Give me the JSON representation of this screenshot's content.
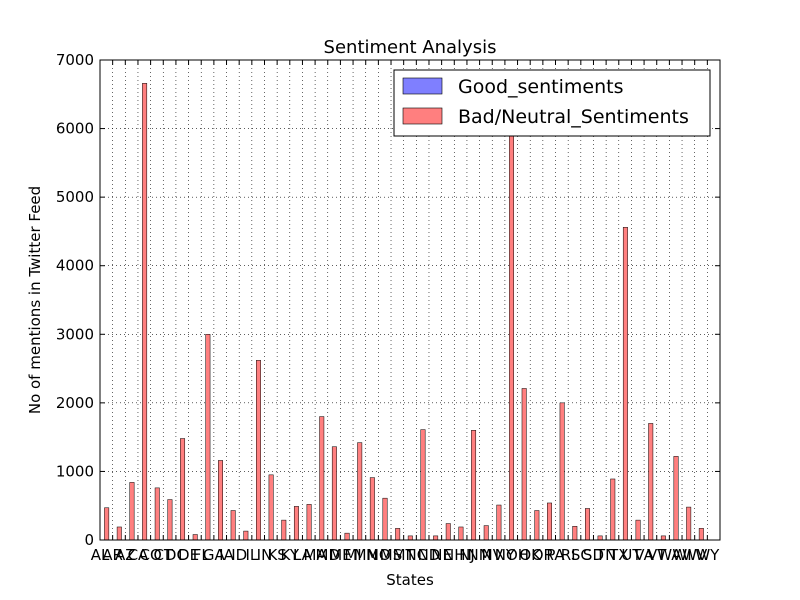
{
  "chart_data": {
    "type": "bar",
    "title": "Sentiment Analysis",
    "xlabel": "States",
    "ylabel": "No of mentions in Twitter Feed",
    "ylim": [
      0,
      7000
    ],
    "yticks": [
      0,
      1000,
      2000,
      3000,
      4000,
      5000,
      6000,
      7000
    ],
    "grid": true,
    "legend_position": "top-right",
    "categories": [
      "AL",
      "AR",
      "AZ",
      "CA",
      "CO",
      "CT",
      "DC",
      "DE",
      "FL",
      "GA",
      "IA",
      "ID",
      "IL",
      "IN",
      "KS",
      "KY",
      "LA",
      "MA",
      "MD",
      "ME",
      "MI",
      "MN",
      "MO",
      "MS",
      "MT",
      "NC",
      "ND",
      "NE",
      "NH",
      "NJ",
      "NM",
      "NV",
      "NY",
      "OH",
      "OK",
      "OR",
      "PA",
      "RI",
      "SC",
      "SD",
      "TN",
      "TX",
      "UT",
      "VA",
      "VT",
      "WA",
      "WI",
      "WV",
      "WY"
    ],
    "series": [
      {
        "name": "Good_sentiments",
        "color": "#7f7fff",
        "values": [
          0,
          0,
          0,
          0,
          0,
          0,
          0,
          0,
          0,
          0,
          0,
          0,
          0,
          0,
          0,
          0,
          0,
          0,
          0,
          0,
          0,
          0,
          0,
          0,
          0,
          0,
          0,
          0,
          0,
          0,
          0,
          0,
          0,
          0,
          0,
          0,
          0,
          0,
          0,
          0,
          0,
          0,
          0,
          0,
          0,
          0,
          0,
          0,
          0
        ]
      },
      {
        "name": "Bad/Neutral_Sentiments",
        "color": "#ff7f7f",
        "values": [
          470,
          190,
          840,
          6660,
          760,
          590,
          1480,
          80,
          3000,
          1160,
          430,
          130,
          2620,
          950,
          290,
          490,
          520,
          1800,
          1360,
          100,
          1420,
          910,
          610,
          170,
          60,
          1610,
          60,
          240,
          190,
          1600,
          210,
          510,
          5900,
          2210,
          430,
          540,
          2000,
          200,
          460,
          60,
          890,
          4560,
          290,
          1700,
          60,
          1220,
          480,
          170,
          0
        ]
      }
    ]
  }
}
